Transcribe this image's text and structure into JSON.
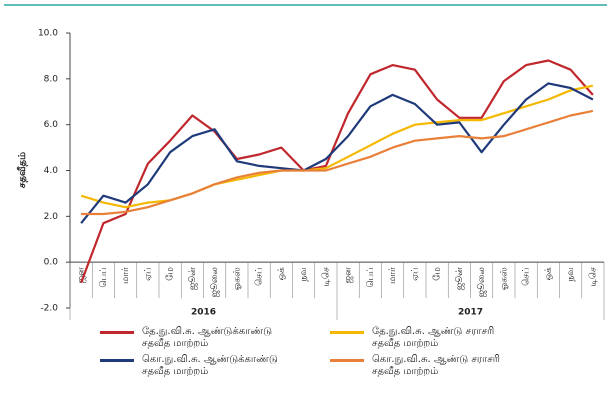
{
  "chart_data": {
    "type": "line",
    "y_label": "சதவீதம்",
    "categories": [
      "ஜன",
      "பெப்",
      "மார்",
      "ஏப்",
      "மே",
      "ஜூன்",
      "ஜூலை",
      "ஓகஸ்",
      "செப்",
      "ஒக்",
      "நவ",
      "டிசெ",
      "ஜன",
      "பெப்",
      "மார்",
      "ஏப்",
      "மே",
      "ஜூன்",
      "ஜூலை",
      "ஓகஸ்",
      "செப்",
      "ஒக்",
      "நவ",
      "டிசெ"
    ],
    "year_labels": [
      "2016",
      "2017"
    ],
    "series": [
      {
        "name": "தே.நு.வி.சு. ஆண்டுக்காண்டு சதவீத மாற்றம்",
        "color": "#c0272d",
        "values": [
          -0.9,
          1.7,
          2.1,
          4.3,
          5.3,
          6.4,
          5.7,
          4.5,
          4.7,
          5.0,
          4.0,
          4.2,
          6.5,
          8.2,
          8.6,
          8.4,
          7.1,
          6.3,
          6.3,
          7.9,
          8.6,
          8.8,
          8.4,
          7.3
        ]
      },
      {
        "name": "தே.நு.வி.சு. ஆண்டு சராசரி சதவீத மாற்றம்",
        "color": "#f5b800",
        "values": [
          2.9,
          2.6,
          2.4,
          2.6,
          2.7,
          3.0,
          3.4,
          3.6,
          3.8,
          4.0,
          4.0,
          4.1,
          4.6,
          5.1,
          5.6,
          6.0,
          6.1,
          6.2,
          6.2,
          6.5,
          6.8,
          7.1,
          7.5,
          7.7
        ]
      },
      {
        "name": "கொ.நு.வி.சு. ஆண்டுக்காண்டு சதவீத மாற்றம்",
        "color": "#1f3a7a",
        "values": [
          1.7,
          2.9,
          2.6,
          3.4,
          4.8,
          5.5,
          5.8,
          4.4,
          4.2,
          4.1,
          4.0,
          4.5,
          5.5,
          6.8,
          7.3,
          6.9,
          6.0,
          6.1,
          4.8,
          6.0,
          7.1,
          7.8,
          7.6,
          7.1
        ]
      },
      {
        "name": "கொ.நு.வி.சு. ஆண்டு சராசரி சதவீத மாற்றம்",
        "color": "#e8803a",
        "values": [
          2.1,
          2.1,
          2.2,
          2.4,
          2.7,
          3.0,
          3.4,
          3.7,
          3.9,
          4.0,
          4.0,
          4.0,
          4.3,
          4.6,
          5.0,
          5.3,
          5.4,
          5.5,
          5.4,
          5.5,
          5.8,
          6.1,
          6.4,
          6.6
        ]
      }
    ],
    "ylim": [
      -2,
      10
    ],
    "yticks": [
      {
        "value": -2,
        "label": "-2.0"
      },
      {
        "value": 0,
        "label": "0.0"
      },
      {
        "value": 2,
        "label": "2.0"
      },
      {
        "value": 4,
        "label": "4.0"
      },
      {
        "value": 6,
        "label": "6.0"
      },
      {
        "value": 8,
        "label": "8.0"
      },
      {
        "value": 10,
        "label": "10.0"
      }
    ],
    "grid": false
  }
}
